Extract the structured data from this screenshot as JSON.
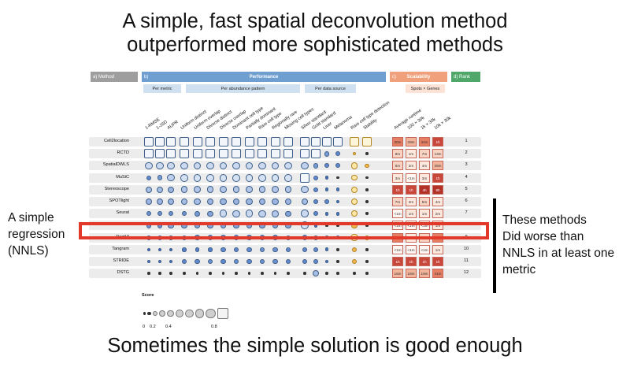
{
  "slide": {
    "title_line1": "A simple, fast spatial deconvolution method",
    "title_line2": "outperformed more sophisticated methods",
    "left_note": [
      "A simple",
      "regression",
      "(NNLS)"
    ],
    "right_note": [
      "These methods",
      "Did worse than",
      "NNLS in at least one",
      "metric"
    ],
    "bottom_text": "Sometimes the simple solution is good enough"
  },
  "figure": {
    "headers": {
      "method": "a)     Method",
      "performance_letter": "b)",
      "performance": "Performance",
      "scalability_letter": "c)",
      "scalability": "Scalability",
      "rank": "d)  Rank"
    },
    "subheaders": {
      "per_metric": "Per metric",
      "per_abundance": "Per abundance pattern",
      "per_data_source": "Per data source",
      "spots_genes": "Spots × Genes"
    },
    "columns": {
      "metrics": [
        "1-RMSE",
        "1-JSD",
        "AUPR"
      ],
      "patterns": [
        "Uniform distinct",
        "Uniform overlap",
        "Diverse distinct",
        "Diverse overlap",
        "Dominant cell type",
        "Partially dominant",
        "Rare cell type",
        "Regionally rare",
        "Missing cell types"
      ],
      "sources": [
        "Silver standard",
        "Gold standard",
        "Liver",
        "Melanoma"
      ],
      "extra": [
        "Rare cell type detection",
        "Stability"
      ],
      "scalability": [
        "Average runtime",
        "100 × 30k",
        "1k × 30k",
        "10k × 30k"
      ]
    },
    "methods": [
      "Cell2location",
      "RCTD",
      "SpatialDWLS",
      "MuSiC",
      "Stereoscope",
      "SPOTlight",
      "Seurat",
      "NNLS",
      "DestVI",
      "Tangram",
      "STRIDE",
      "DSTG"
    ],
    "ranks": [
      "1",
      "2",
      "3",
      "4",
      "5",
      "6",
      "7",
      "8",
      "9",
      "10",
      "11",
      "12"
    ],
    "scores": [
      [
        0.95,
        0.95,
        0.95,
        0.95,
        0.95,
        0.95,
        0.95,
        0.95,
        0.95,
        0.95,
        0.95,
        0.95,
        0.95,
        0.95,
        0.95,
        0.95,
        0.9,
        0.9
      ],
      [
        0.95,
        0.95,
        0.95,
        0.95,
        0.95,
        0.95,
        0.95,
        0.95,
        0.95,
        0.95,
        0.95,
        0.95,
        0.95,
        0.95,
        0.4,
        0.3,
        0.15,
        0.1
      ],
      [
        0.75,
        0.75,
        0.75,
        0.75,
        0.75,
        0.75,
        0.75,
        0.75,
        0.75,
        0.75,
        0.75,
        0.75,
        0.7,
        0.4,
        0.3,
        0.3,
        0.6,
        0.25
      ],
      [
        0.3,
        0.4,
        0.7,
        0.8,
        0.8,
        0.8,
        0.8,
        0.8,
        0.8,
        0.8,
        0.8,
        0.8,
        0.85,
        0.3,
        0.15,
        0.1,
        0.5,
        0.1
      ],
      [
        0.6,
        0.6,
        0.55,
        0.65,
        0.65,
        0.65,
        0.65,
        0.65,
        0.65,
        0.65,
        0.65,
        0.65,
        0.7,
        0.3,
        0.2,
        0.2,
        0.55,
        0.1
      ],
      [
        0.55,
        0.55,
        0.55,
        0.6,
        0.6,
        0.55,
        0.55,
        0.55,
        0.55,
        0.55,
        0.55,
        0.55,
        0.6,
        0.3,
        0.3,
        0.2,
        0.5,
        0.1
      ],
      [
        0.35,
        0.35,
        0.35,
        0.35,
        0.4,
        0.45,
        0.75,
        0.7,
        0.75,
        0.7,
        0.65,
        0.45,
        0.75,
        0.3,
        0.2,
        0.2,
        0.5,
        0.1
      ],
      [
        0.35,
        0.35,
        0.45,
        0.45,
        0.45,
        0.45,
        0.45,
        0.45,
        0.45,
        0.45,
        0.45,
        0.45,
        0.8,
        0.15,
        0.1,
        0.1,
        0.45,
        0.1
      ],
      [
        0.3,
        0.3,
        0.3,
        0.3,
        0.35,
        0.35,
        0.4,
        0.4,
        0.35,
        0.35,
        0.4,
        0.3,
        0.35,
        0.3,
        0.2,
        0.2,
        0.7,
        0.3
      ],
      [
        0.15,
        0.15,
        0.15,
        0.25,
        0.25,
        0.25,
        0.3,
        0.3,
        0.3,
        0.35,
        0.35,
        0.3,
        0.3,
        0.3,
        0.2,
        0.1,
        0.3,
        0.1
      ],
      [
        0.2,
        0.2,
        0.2,
        0.3,
        0.3,
        0.35,
        0.3,
        0.35,
        0.3,
        0.35,
        0.35,
        0.3,
        0.3,
        0.3,
        0.2,
        0.1,
        0.3,
        0.1
      ],
      [
        0.1,
        0.1,
        0.1,
        0.1,
        0.1,
        0.1,
        0.1,
        0.1,
        0.1,
        0.1,
        0.1,
        0.1,
        0.1,
        0.6,
        0.1,
        0.1,
        0.1,
        0.1
      ]
    ],
    "runtimes": [
      [
        "30m",
        "29m",
        "34m",
        "1h"
      ],
      [
        "8m",
        "1m",
        "7m",
        "13m"
      ],
      [
        "6m",
        "2m",
        "4m",
        "26m"
      ],
      [
        "3m",
        "<1m",
        "3m",
        "1h"
      ],
      [
        "1h",
        "1h",
        "4h",
        "8h"
      ],
      [
        "7m",
        "3m",
        "5m",
        "4m"
      ],
      [
        "<1m",
        "1m",
        "1m",
        "2m"
      ],
      [
        "<1m",
        "<1m",
        "<1m",
        "1m"
      ],
      [
        "31m",
        "3m",
        "5m",
        "38m"
      ],
      [
        "<1m",
        "<1m",
        "<1m",
        "1m"
      ],
      [
        "1h",
        "1h",
        "1h",
        "1h"
      ],
      [
        "16m",
        "18m",
        "19m",
        "41m"
      ]
    ],
    "legend": {
      "title": "Score",
      "ticks": [
        "0",
        "0.2",
        "0.4",
        "0.8"
      ]
    },
    "colors": {
      "method_header": "#9e9e9e",
      "performance_header": "#6f9fd0",
      "scalability_header": "#f0a07a",
      "rank_header": "#4fa86a",
      "subheader_fill": "#cfe1f1",
      "highlight_box": "#e13a2a"
    }
  }
}
